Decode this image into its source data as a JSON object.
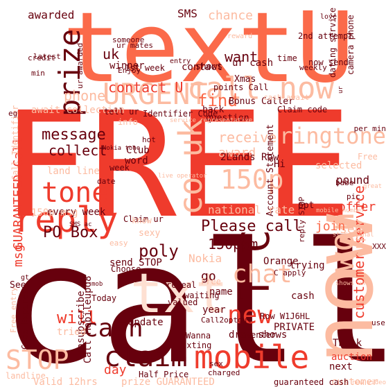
{
  "colors": {
    "background": "#ffffff",
    "palette": [
      "#67000d",
      "#ef3b2c",
      "#fb6a4a",
      "#fc9272",
      "#fcbba1",
      "#fee0d2"
    ]
  },
  "words": [
    {
      "text": "call",
      "color": "#67000d"
    },
    {
      "text": "FREE",
      "color": "#ef3b2c"
    },
    {
      "text": "textU",
      "color": "#fb6a4a"
    },
    {
      "text": "now",
      "color": "#fcbba1"
    },
    {
      "text": "mobile",
      "color": "#ef3b2c"
    },
    {
      "text": "txt",
      "color": "#fee0d2"
    },
    {
      "text": "reply",
      "color": "#ef3b2c"
    },
    {
      "text": "call now",
      "color": "#fcbba1"
    },
    {
      "text": "150p",
      "color": "#fcbba1"
    },
    {
      "text": "tone",
      "color": "#ef3b2c"
    },
    {
      "text": "claim",
      "color": "#67000d"
    },
    {
      "text": "new",
      "color": "#ef3b2c"
    },
    {
      "text": "won",
      "color": "#fcbba1"
    },
    {
      "text": "prize",
      "color": "#67000d"
    },
    {
      "text": "co uk",
      "color": "#fcbba1"
    },
    {
      "text": "URGENT",
      "color": "#fcbba1"
    },
    {
      "text": "STOP",
      "color": "#fcbba1"
    },
    {
      "text": "Please call",
      "color": "#67000d"
    },
    {
      "text": "T C",
      "color": "#67000d"
    },
    {
      "text": "ringtone",
      "color": "#fcbba1"
    },
    {
      "text": "message",
      "color": "#67000d"
    },
    {
      "text": "cash",
      "color": "#67000d"
    },
    {
      "text": "chat",
      "color": "#fcbba1"
    },
    {
      "text": "customer service",
      "color": "#ef3b2c"
    },
    {
      "text": "contact U",
      "color": "#ef3b2c"
    },
    {
      "text": "GUARANTEED Call",
      "color": "#ef3b2c"
    },
    {
      "text": "want",
      "color": "#67000d"
    },
    {
      "text": "will",
      "color": "#ef3b2c"
    },
    {
      "text": "PO Box",
      "color": "#67000d"
    },
    {
      "text": "150ppm",
      "color": "#67000d"
    },
    {
      "text": "poly",
      "color": "#67000d"
    },
    {
      "text": "receive",
      "color": "#fcbba1"
    },
    {
      "text": "award",
      "color": "#fcbba1"
    },
    {
      "text": "chance",
      "color": "#fcbba1"
    },
    {
      "text": "uk",
      "color": "#67000d"
    },
    {
      "text": "collect",
      "color": "#67000d"
    },
    {
      "text": "offer",
      "color": "#ef3b2c"
    },
    {
      "text": "SMS",
      "color": "#67000d"
    },
    {
      "text": "send",
      "color": "#fcbba1"
    },
    {
      "text": "day",
      "color": "#ef3b2c"
    },
    {
      "text": "find",
      "color": "#fb6a4a"
    },
    {
      "text": "land line",
      "color": "#fcbba1"
    },
    {
      "text": "every week",
      "color": "#67000d"
    },
    {
      "text": "phone",
      "color": "#fcbba1"
    },
    {
      "text": "Nokia",
      "color": "#fcbba1"
    },
    {
      "text": "apply",
      "color": "#fcbba1"
    },
    {
      "text": "join",
      "color": "#fb6a4a"
    },
    {
      "text": "msg",
      "color": "#ef3b2c"
    },
    {
      "text": "go",
      "color": "#67000d"
    },
    {
      "text": "Update",
      "color": "#67000d"
    },
    {
      "text": "send STOP",
      "color": "#67000d"
    },
    {
      "text": "question",
      "color": "#67000d"
    },
    {
      "text": "Orange",
      "color": "#67000d"
    },
    {
      "text": "trying",
      "color": "#67000d"
    },
    {
      "text": "PRIVATE",
      "color": "#67000d"
    },
    {
      "text": "Thank",
      "color": "#67000d"
    },
    {
      "text": "auction",
      "color": "#ef3b2c"
    },
    {
      "text": "next",
      "color": "#67000d"
    },
    {
      "text": "Call Mobileupd8",
      "color": "#67000d"
    },
    {
      "text": "unsubscribe",
      "color": "#67000d"
    },
    {
      "text": "Valid 12hrs",
      "color": "#fcbba1"
    },
    {
      "text": "prize GUARANTEED",
      "color": "#fcbba1"
    },
    {
      "text": "draw shows",
      "color": "#67000d"
    },
    {
      "text": "contact",
      "color": "#67000d"
    },
    {
      "text": "winner",
      "color": "#67000d"
    },
    {
      "text": "awarded",
      "color": "#67000d"
    },
    {
      "text": "await collection",
      "color": "#fcbba1"
    },
    {
      "text": "Account Statement",
      "color": "#67000d"
    },
    {
      "text": "2Lands Row",
      "color": "#67000d"
    },
    {
      "text": "Hi",
      "color": "#67000d"
    },
    {
      "text": "selected",
      "color": "#fcbba1"
    },
    {
      "text": "pound",
      "color": "#67000d"
    },
    {
      "text": "week",
      "color": "#67000d"
    },
    {
      "text": "Club",
      "color": "#67000d"
    },
    {
      "text": "word",
      "color": "#67000d"
    },
    {
      "text": "Xmas",
      "color": "#67000d"
    },
    {
      "text": "back",
      "color": "#67000d"
    },
    {
      "text": "ur cash",
      "color": "#67000d"
    },
    {
      "text": "time",
      "color": "#67000d"
    },
    {
      "text": "dating service",
      "color": "#67000d"
    },
    {
      "text": "camera phone",
      "color": "#67000d"
    },
    {
      "text": "Identifier Code",
      "color": "#67000d"
    },
    {
      "text": "Call Identifier",
      "color": "#fcbba1"
    },
    {
      "text": "latest",
      "color": "#67000d"
    },
    {
      "text": "credit",
      "color": "#67000d"
    },
    {
      "text": "someone",
      "color": "#67000d"
    },
    {
      "text": "ur awarded",
      "color": "#67000d"
    },
    {
      "text": "opt",
      "color": "#67000d"
    },
    {
      "text": "name",
      "color": "#67000d"
    },
    {
      "text": "year",
      "color": "#67000d"
    },
    {
      "text": "cash",
      "color": "#67000d"
    },
    {
      "text": "Claim ur",
      "color": "#67000d"
    },
    {
      "text": "Today",
      "color": "#67000d"
    },
    {
      "text": "Code Expires",
      "color": "#67000d"
    },
    {
      "text": "Free entry",
      "color": "#fcbba1"
    },
    {
      "text": "customer",
      "color": "#fcbba1"
    },
    {
      "text": "reveal",
      "color": "#67000d"
    },
    {
      "text": "valued",
      "color": "#67000d"
    },
    {
      "text": "txting",
      "color": "#67000d"
    },
    {
      "text": "guaranteed cash",
      "color": "#67000d"
    },
    {
      "text": "Half Price",
      "color": "#67000d"
    },
    {
      "text": "Row W1J6HL",
      "color": "#67000d"
    },
    {
      "text": "national rate",
      "color": "#fcbba1"
    },
    {
      "text": "reply STOP",
      "color": "#67000d"
    },
    {
      "text": "entry",
      "color": "#67000d"
    },
    {
      "text": "min",
      "color": "#67000d"
    },
    {
      "text": "shows",
      "color": "#67000d"
    },
    {
      "text": "Bonus Caller",
      "color": "#67000d"
    },
    {
      "text": "Claim code",
      "color": "#67000d"
    },
    {
      "text": "tell ur",
      "color": "#67000d"
    },
    {
      "text": "1st week",
      "color": "#67000d"
    },
    {
      "text": "ur mates",
      "color": "#67000d"
    },
    {
      "text": "2nd attempt",
      "color": "#67000d"
    },
    {
      "text": "now send",
      "color": "#67000d"
    },
    {
      "text": "points Call",
      "color": "#67000d"
    },
    {
      "text": "sexy",
      "color": "#fcbba1"
    },
    {
      "text": "know",
      "color": "#fcbba1"
    },
    {
      "text": "Choose",
      "color": "#67000d"
    },
    {
      "text": "Wanna",
      "color": "#67000d"
    },
    {
      "text": "enter",
      "color": "#67000d"
    },
    {
      "text": "waiting",
      "color": "#67000d"
    },
    {
      "text": "info",
      "color": "#fcbba1"
    },
    {
      "text": "See",
      "color": "#67000d"
    },
    {
      "text": "tried",
      "color": "#fcbba1"
    },
    {
      "text": "weekly",
      "color": "#67000d"
    },
    {
      "text": "love",
      "color": "#67000d"
    },
    {
      "text": "reward",
      "color": "#fcbba1"
    },
    {
      "text": "cash await",
      "color": "#fcbba1"
    },
    {
      "text": "hot",
      "color": "#67000d"
    },
    {
      "text": "date",
      "color": "#67000d"
    },
    {
      "text": "Enjoy",
      "color": "#67000d"
    },
    {
      "text": "easy",
      "color": "#fcbba1"
    },
    {
      "text": "babe",
      "color": "#67000d"
    },
    {
      "text": "pic",
      "color": "#67000d"
    },
    {
      "text": "per min",
      "color": "#67000d"
    },
    {
      "text": "eg",
      "color": "#67000d"
    },
    {
      "text": "sex",
      "color": "#67000d"
    },
    {
      "text": "charged",
      "color": "#67000d"
    },
    {
      "text": "Call2optout",
      "color": "#67000d"
    },
    {
      "text": "C apply",
      "color": "#67000d"
    },
    {
      "text": "Nokia tone",
      "color": "#67000d"
    },
    {
      "text": "XXX",
      "color": "#67000d"
    },
    {
      "text": "gt",
      "color": "#67000d"
    },
    {
      "text": "SMS ac",
      "color": "#67000d"
    },
    {
      "text": "mob",
      "color": "#67000d"
    },
    {
      "text": "use",
      "color": "#67000d"
    },
    {
      "text": "ur",
      "color": "#67000d"
    },
    {
      "text": "service representative",
      "color": "#fcbba1"
    },
    {
      "text": "shows un",
      "color": "#fcbba1"
    },
    {
      "text": "new video",
      "color": "#fcbba1"
    },
    {
      "text": "st National",
      "color": "#fcbba1"
    },
    {
      "text": "live operator",
      "color": "#fcbba1"
    },
    {
      "text": "great",
      "color": "#fcbba1"
    },
    {
      "text": "mobile number",
      "color": "#fcbba1"
    },
    {
      "text": "Free",
      "color": "#fcbba1"
    },
    {
      "text": "landline",
      "color": "#fcbba1"
    },
    {
      "text": "150p msg",
      "color": "#fcbba1"
    },
    {
      "text": "Free",
      "color": "#fcbba1"
    },
    {
      "text": "receive",
      "color": "#fcbba1"
    }
  ]
}
